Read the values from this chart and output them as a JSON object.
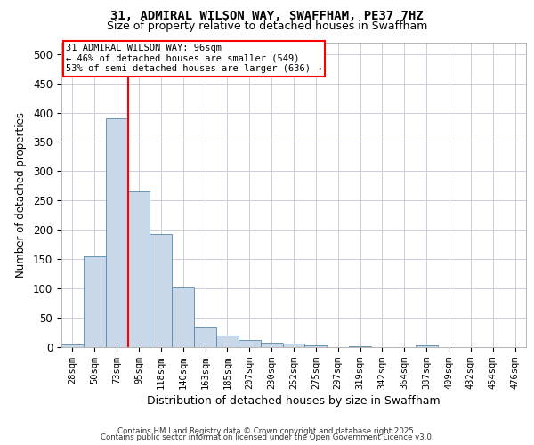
{
  "title_line1": "31, ADMIRAL WILSON WAY, SWAFFHAM, PE37 7HZ",
  "title_line2": "Size of property relative to detached houses in Swaffham",
  "xlabel": "Distribution of detached houses by size in Swaffham",
  "ylabel": "Number of detached properties",
  "bar_labels": [
    "28sqm",
    "50sqm",
    "73sqm",
    "95sqm",
    "118sqm",
    "140sqm",
    "163sqm",
    "185sqm",
    "207sqm",
    "230sqm",
    "252sqm",
    "275sqm",
    "297sqm",
    "319sqm",
    "342sqm",
    "364sqm",
    "387sqm",
    "409sqm",
    "432sqm",
    "454sqm",
    "476sqm"
  ],
  "bar_values": [
    5,
    155,
    390,
    265,
    193,
    102,
    35,
    20,
    12,
    8,
    6,
    3,
    0,
    2,
    0,
    0,
    3,
    0,
    0,
    0,
    0
  ],
  "bar_color": "#c8d8e8",
  "bar_edge_color": "#5588aa",
  "red_line_x": 2.5,
  "annotation_text": "31 ADMIRAL WILSON WAY: 96sqm\n← 46% of detached houses are smaller (549)\n53% of semi-detached houses are larger (636) →",
  "annotation_box_color": "white",
  "annotation_box_edge_color": "red",
  "ylim": [
    0,
    520
  ],
  "yticks": [
    0,
    50,
    100,
    150,
    200,
    250,
    300,
    350,
    400,
    450,
    500
  ],
  "grid_color": "#ccccdd",
  "background_color": "white",
  "footer_line1": "Contains HM Land Registry data © Crown copyright and database right 2025.",
  "footer_line2": "Contains public sector information licensed under the Open Government Licence v3.0."
}
